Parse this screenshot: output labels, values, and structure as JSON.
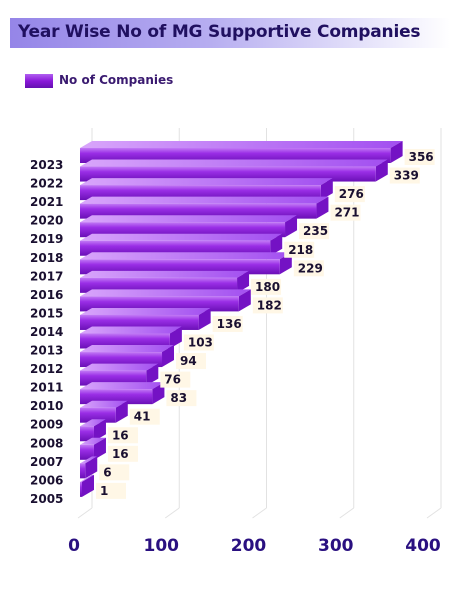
{
  "title": "Year Wise No of MG Supportive Companies",
  "chart_data": {
    "type": "bar",
    "orientation": "horizontal",
    "title": "Year Wise No of MG Supportive Companies",
    "categories": [
      "2023",
      "2022",
      "2021",
      "2020",
      "2019",
      "2018",
      "2017",
      "2016",
      "2015",
      "2014",
      "2013",
      "2012",
      "2011",
      "2010",
      "2009",
      "2008",
      "2007",
      "2006",
      "2005"
    ],
    "series": [
      {
        "name": "No of Companies",
        "values": [
          356,
          339,
          276,
          271,
          235,
          218,
          229,
          180,
          182,
          136,
          103,
          94,
          76,
          83,
          41,
          16,
          16,
          6,
          1
        ]
      }
    ],
    "xlim": [
      0,
      400
    ],
    "xticks": [
      "0",
      "100",
      "200",
      "300",
      "400"
    ],
    "grid": true,
    "legend_position": "top-left",
    "bar_color": "#8a18d8"
  }
}
